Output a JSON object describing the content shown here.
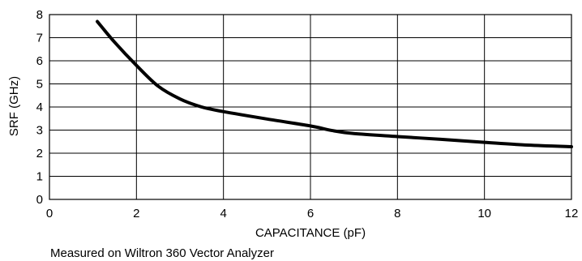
{
  "chart_data": {
    "type": "line",
    "title": "",
    "xlabel": "CAPACITANCE (pF)",
    "ylabel": "SRF (GHz)",
    "xlim": [
      0,
      12
    ],
    "ylim": [
      0,
      8
    ],
    "xticks": [
      0,
      2,
      4,
      6,
      8,
      10,
      12
    ],
    "yticks": [
      0,
      1,
      2,
      3,
      4,
      5,
      6,
      7,
      8
    ],
    "grid": true,
    "legend": "none",
    "series": [
      {
        "color": "#000000",
        "x": [
          1.1,
          1.5,
          2.0,
          2.5,
          3.0,
          3.5,
          4.0,
          5.0,
          6.0,
          6.5,
          7.0,
          8.0,
          9.0,
          10.0,
          11.0,
          12.0
        ],
        "y": [
          7.7,
          6.8,
          5.8,
          4.9,
          4.35,
          4.0,
          3.8,
          3.48,
          3.18,
          2.98,
          2.85,
          2.72,
          2.6,
          2.47,
          2.35,
          2.28
        ]
      }
    ]
  },
  "footnote": "Measured on Wiltron 360 Vector Analyzer"
}
